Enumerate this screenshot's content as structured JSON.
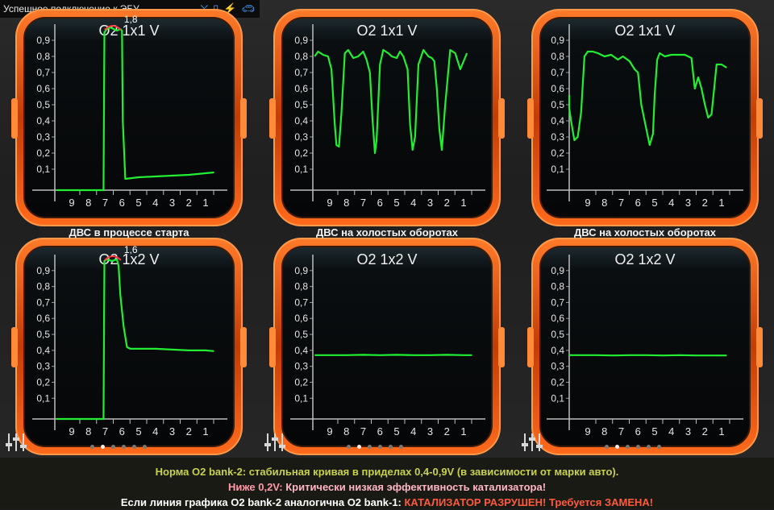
{
  "status_bar": {
    "text": "Успешное подключение к ЭБУ",
    "icons": [
      "satellite-off-icon",
      "phone-icon",
      "bluetooth-icon",
      "car-icon"
    ]
  },
  "colors": {
    "line": "#22ee33",
    "frame_outer": "#d94a0a",
    "frame_inner": "#ff8a3a",
    "screen": "#0a0c0e",
    "footer_line1": "#c8d24a",
    "footer_highlight": "#ff5a3c"
  },
  "captions": [
    "ДВС в процессе старта",
    "ДВС на холостых оборотах",
    "ДВС на холостых оборотах"
  ],
  "chart_data": [
    {
      "type": "line",
      "title": "O2 1x1 V",
      "peak_label": "1,8",
      "x_ticks": [
        "9",
        "8",
        "7",
        "6",
        "5",
        "4",
        "3",
        "2",
        "1"
      ],
      "y_ticks": [
        "0,9",
        "0,8",
        "0,7",
        "0,6",
        "0,5",
        "0,4",
        "0,3",
        "0,2",
        "0,1"
      ],
      "ylim": [
        -0.05,
        1.0
      ],
      "x": [
        9.9,
        9,
        8,
        7.1,
        7.05,
        6.9,
        6.7,
        6.5,
        6.3,
        6.1,
        6.0,
        5.95,
        5.8,
        5,
        4,
        3,
        2,
        1,
        0.5
      ],
      "y": [
        -0.03,
        -0.03,
        -0.03,
        -0.03,
        0.95,
        0.97,
        0.98,
        0.97,
        0.96,
        0.97,
        0.96,
        0.4,
        0.04,
        0.05,
        0.055,
        0.06,
        0.065,
        0.075,
        0.08
      ]
    },
    {
      "type": "line",
      "title": "O2 1x1 V",
      "x_ticks": [
        "9",
        "8",
        "7",
        "6",
        "5",
        "4",
        "3",
        "2",
        "1"
      ],
      "y_ticks": [
        "0,9",
        "0,8",
        "0,7",
        "0,6",
        "0,5",
        "0,4",
        "0,3",
        "0,2",
        "0,1"
      ],
      "ylim": [
        -0.05,
        1.0
      ],
      "x": [
        9.9,
        9.7,
        9.4,
        9.1,
        8.9,
        8.7,
        8.6,
        8.45,
        8.3,
        8.1,
        7.9,
        7.6,
        7.3,
        7.0,
        6.8,
        6.6,
        6.45,
        6.3,
        6.2,
        6.0,
        5.8,
        5.5,
        5.3,
        5.0,
        4.8,
        4.6,
        4.35,
        4.2,
        4.05,
        3.9,
        3.7,
        3.4,
        3.1,
        2.9,
        2.75,
        2.6,
        2.45,
        2.3,
        2.1,
        1.8,
        1.5,
        1.2,
        0.8
      ],
      "y": [
        0.8,
        0.83,
        0.81,
        0.8,
        0.72,
        0.38,
        0.25,
        0.24,
        0.45,
        0.82,
        0.84,
        0.79,
        0.8,
        0.83,
        0.78,
        0.7,
        0.42,
        0.2,
        0.28,
        0.75,
        0.84,
        0.82,
        0.8,
        0.79,
        0.83,
        0.8,
        0.72,
        0.38,
        0.22,
        0.3,
        0.75,
        0.84,
        0.8,
        0.79,
        0.77,
        0.6,
        0.35,
        0.22,
        0.5,
        0.84,
        0.82,
        0.72,
        0.82
      ]
    },
    {
      "type": "line",
      "title": "O2 1x1 V",
      "x_ticks": [
        "9",
        "8",
        "7",
        "6",
        "5",
        "4",
        "3",
        "2",
        "1"
      ],
      "y_ticks": [
        "0,9",
        "0,8",
        "0,7",
        "0,6",
        "0,5",
        "0,4",
        "0,3",
        "0,2",
        "0,1"
      ],
      "ylim": [
        -0.05,
        1.0
      ],
      "x": [
        10.4,
        10.2,
        10,
        9.8,
        9.6,
        9.4,
        9.2,
        9.0,
        8.7,
        8.4,
        8.0,
        7.6,
        7.2,
        6.9,
        6.5,
        6.2,
        6.0,
        5.8,
        5.5,
        5.3,
        5.1,
        5.0,
        4.85,
        4.7,
        4.4,
        4.0,
        3.6,
        3.2,
        2.8,
        2.6,
        2.4,
        2.2,
        2.0,
        1.8,
        1.6,
        1.3,
        1.0,
        0.7
      ],
      "y": [
        0.56,
        0.48,
        0.4,
        0.28,
        0.3,
        0.45,
        0.8,
        0.83,
        0.83,
        0.82,
        0.8,
        0.81,
        0.78,
        0.8,
        0.77,
        0.72,
        0.7,
        0.5,
        0.35,
        0.25,
        0.32,
        0.56,
        0.78,
        0.82,
        0.8,
        0.81,
        0.81,
        0.81,
        0.79,
        0.6,
        0.67,
        0.6,
        0.5,
        0.42,
        0.44,
        0.75,
        0.75,
        0.73
      ]
    },
    {
      "type": "line",
      "title": "O2 1x2 V",
      "peak_label": "1,6",
      "x_ticks": [
        "9",
        "8",
        "7",
        "6",
        "5",
        "4",
        "3",
        "2",
        "1"
      ],
      "y_ticks": [
        "0,9",
        "0,8",
        "0,7",
        "0,6",
        "0,5",
        "0,4",
        "0,3",
        "0,2",
        "0,1"
      ],
      "ylim": [
        -0.05,
        1.0
      ],
      "x": [
        9.9,
        9,
        8,
        7.1,
        7.05,
        6.9,
        6.6,
        6.3,
        6.2,
        6.1,
        5.9,
        5.7,
        5.5,
        5,
        4,
        3,
        2,
        1,
        0.5
      ],
      "y": [
        -0.03,
        -0.03,
        -0.03,
        -0.03,
        0.96,
        0.97,
        0.96,
        0.97,
        0.93,
        0.75,
        0.55,
        0.42,
        0.41,
        0.41,
        0.41,
        0.405,
        0.4,
        0.4,
        0.395
      ]
    },
    {
      "type": "line",
      "title": "O2 1x2 V",
      "x_ticks": [
        "9",
        "8",
        "7",
        "6",
        "5",
        "4",
        "3",
        "2",
        "1"
      ],
      "y_ticks": [
        "0,9",
        "0,8",
        "0,7",
        "0,6",
        "0,5",
        "0,4",
        "0,3",
        "0,2",
        "0,1"
      ],
      "ylim": [
        -0.05,
        1.0
      ],
      "x": [
        9.9,
        9,
        8,
        7,
        6,
        5,
        4,
        3,
        2,
        1,
        0.5
      ],
      "y": [
        0.37,
        0.37,
        0.37,
        0.372,
        0.37,
        0.372,
        0.37,
        0.37,
        0.372,
        0.37,
        0.37
      ]
    },
    {
      "type": "line",
      "title": "O2 1x2 V",
      "x_ticks": [
        "9",
        "8",
        "7",
        "6",
        "5",
        "4",
        "3",
        "2",
        "1"
      ],
      "y_ticks": [
        "0,9",
        "0,8",
        "0,7",
        "0,6",
        "0,5",
        "0,4",
        "0,3",
        "0,2",
        "0,1"
      ],
      "ylim": [
        -0.05,
        1.0
      ],
      "x": [
        10.4,
        9.5,
        8.5,
        7.5,
        6.5,
        5.5,
        4.5,
        3.5,
        2.5,
        1.5,
        0.7
      ],
      "y": [
        0.37,
        0.37,
        0.37,
        0.368,
        0.37,
        0.37,
        0.368,
        0.37,
        0.368,
        0.368,
        0.368
      ]
    }
  ],
  "footer": {
    "line1": "Норма O2 bank-2: стабильная кривая в приделах 0,4-0,9V (в зависимости от марки авто).",
    "line2_prefix": "Ниже 0,2V:",
    "line2_rest": " Критически низкая эффективность катализатора!",
    "line3_prefix": "Если линия графика O2 bank-2 аналогична O2 bank-1:",
    "line3_highlight": " КАТАЛИЗАТОР РАЗРУШЕН! Требуется ЗАМЕНА!"
  }
}
